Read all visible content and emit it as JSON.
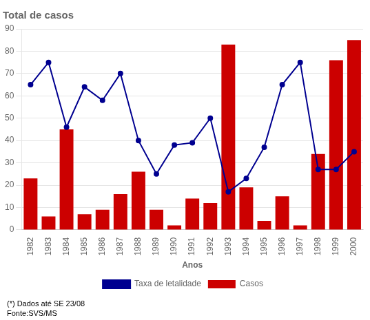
{
  "chart_data": {
    "type": "bar",
    "title": "Total de casos",
    "xlabel": "Anos",
    "categories": [
      "1982",
      "1983",
      "1984",
      "1985",
      "1986",
      "1987",
      "1988",
      "1989",
      "1990",
      "1991",
      "1992",
      "1993",
      "1994",
      "1995",
      "1996",
      "1997",
      "1998",
      "1999",
      "2000"
    ],
    "series": [
      {
        "name": "Casos",
        "type": "bar",
        "color": "#cc0000",
        "values": [
          23,
          6,
          45,
          7,
          9,
          16,
          26,
          9,
          2,
          14,
          12,
          83,
          19,
          4,
          15,
          2,
          34,
          76,
          85
        ]
      },
      {
        "name": "Taxa de letalidade",
        "type": "line",
        "color": "#000090",
        "marker": "circle",
        "line_style": "solid",
        "values": [
          65,
          75,
          46,
          64,
          58,
          70,
          40,
          25,
          38,
          39,
          50,
          17,
          23,
          37,
          65,
          75,
          27,
          27,
          35
        ]
      }
    ],
    "ylim": [
      0,
      90
    ],
    "yticks": [
      0,
      10,
      20,
      30,
      40,
      50,
      60,
      70,
      80,
      90
    ],
    "grid": true,
    "legend": "bottom",
    "annotations": [
      "(*) Dados até SE 23/08",
      "Fonte:SVS/MS"
    ]
  }
}
